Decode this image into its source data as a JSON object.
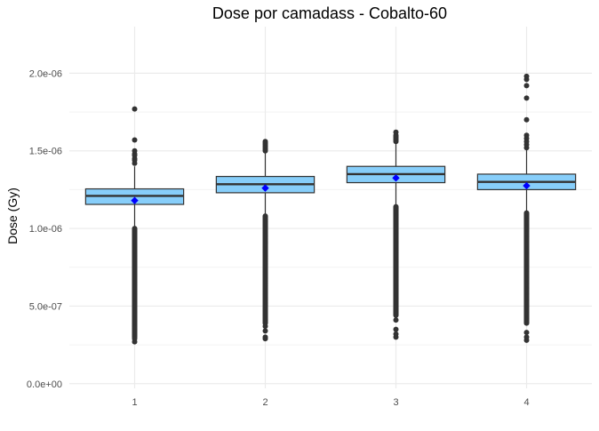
{
  "chart_data": {
    "type": "boxplot",
    "title": "Dose por camadass - Cobalto-60",
    "xlabel": "",
    "ylabel": "Dose (Gy)",
    "categories": [
      "1",
      "2",
      "3",
      "4"
    ],
    "ylim": [
      -3e-08,
      2.3e-06
    ],
    "y_ticks": [
      0,
      5e-07,
      1e-06,
      1.5e-06,
      2e-06
    ],
    "y_tick_labels": [
      "0.0e+00",
      "5.0e-07",
      "1.0e-06",
      "1.5e-06",
      "2.0e-06"
    ],
    "grid": true,
    "colors": {
      "box_fill": "#87cefa",
      "box_stroke": "#333333",
      "mean_marker": "#0000ff",
      "outlier": "#333333",
      "grid": "#ebebeb"
    },
    "boxes": [
      {
        "q1": 1.155e-06,
        "median": 1.21e-06,
        "q3": 1.255e-06,
        "whisker_low": 1.01e-06,
        "whisker_high": 1.4e-06,
        "mean": 1.18e-06,
        "outliers_high": [
          1.42e-06,
          1.44e-06,
          1.45e-06,
          1.47e-06,
          1.48e-06,
          1.5e-06,
          1.57e-06,
          1.77e-06
        ],
        "outliers_low_range": [
          3e-07,
          1e-06
        ],
        "outliers_low_extra": [
          2.7e-07,
          2.9e-07,
          3.6e-07
        ]
      },
      {
        "q1": 1.23e-06,
        "median": 1.285e-06,
        "q3": 1.335e-06,
        "whisker_low": 1.08e-06,
        "whisker_high": 1.49e-06,
        "mean": 1.26e-06,
        "outliers_high": [
          1.5e-06,
          1.51e-06,
          1.52e-06,
          1.53e-06,
          1.54e-06,
          1.55e-06,
          1.56e-06
        ],
        "outliers_low_range": [
          3.9e-07,
          1.08e-06
        ],
        "outliers_low_extra": [
          2.9e-07,
          3e-07,
          3.4e-07,
          3.7e-07
        ]
      },
      {
        "q1": 1.295e-06,
        "median": 1.35e-06,
        "q3": 1.4e-06,
        "whisker_low": 1.14e-06,
        "whisker_high": 1.55e-06,
        "mean": 1.325e-06,
        "outliers_high": [
          1.56e-06,
          1.57e-06,
          1.58e-06,
          1.59e-06,
          1.6e-06,
          1.62e-06
        ],
        "outliers_low_range": [
          4.4e-07,
          1.14e-06
        ],
        "outliers_low_extra": [
          3e-07,
          3.2e-07,
          3.5e-07,
          4.1e-07
        ]
      },
      {
        "q1": 1.25e-06,
        "median": 1.3e-06,
        "q3": 1.35e-06,
        "whisker_low": 1.1e-06,
        "whisker_high": 1.51e-06,
        "mean": 1.275e-06,
        "outliers_high": [
          1.52e-06,
          1.54e-06,
          1.56e-06,
          1.58e-06,
          1.6e-06,
          1.7e-06,
          1.84e-06,
          1.92e-06,
          1.96e-06,
          1.98e-06
        ],
        "outliers_low_range": [
          3.9e-07,
          1.1e-06
        ],
        "outliers_low_extra": [
          2.8e-07,
          3e-07,
          3.3e-07
        ]
      }
    ]
  }
}
